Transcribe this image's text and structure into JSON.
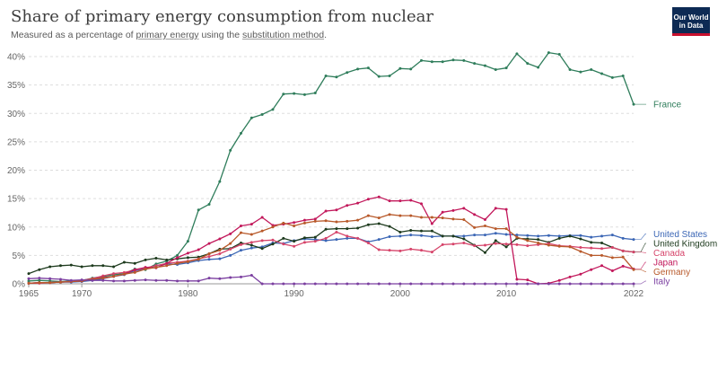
{
  "header": {
    "title": "Share of primary energy consumption from nuclear",
    "subtitle_prefix": "Measured as a percentage of ",
    "subtitle_link1": "primary energy",
    "subtitle_mid": " using the ",
    "subtitle_link2": "substitution method",
    "subtitle_suffix": ".",
    "logo_line1": "Our World",
    "logo_line2": "in Data"
  },
  "colors": {
    "France": "#2f7d5b",
    "United States": "#3b66b5",
    "United Kingdom": "#1d3a1d",
    "Canada": "#d6446a",
    "Japan": "#c2185b",
    "Germany": "#b8592a",
    "Italy": "#7b3fa0"
  },
  "chart_data": {
    "type": "line",
    "title": "Share of primary energy consumption from nuclear",
    "subtitle": "Measured as a percentage of primary energy using the substitution method.",
    "xlim": [
      1965,
      2022
    ],
    "ylim": [
      0,
      40
    ],
    "y_ticks": [
      "0%",
      "5%",
      "10%",
      "15%",
      "20%",
      "25%",
      "30%",
      "35%",
      "40%"
    ],
    "y_tick_values": [
      0,
      5,
      10,
      15,
      20,
      25,
      30,
      35,
      40
    ],
    "x_ticks": [
      "1965",
      "1970",
      "1980",
      "1990",
      "2000",
      "2010",
      "2022"
    ],
    "x_tick_values": [
      1965,
      1970,
      1980,
      1990,
      2000,
      2010,
      2022
    ],
    "grid": true,
    "legend": "right, end-of-line labels",
    "years": [
      1965,
      1966,
      1967,
      1968,
      1969,
      1970,
      1971,
      1972,
      1973,
      1974,
      1975,
      1976,
      1977,
      1978,
      1979,
      1980,
      1981,
      1982,
      1983,
      1984,
      1985,
      1986,
      1987,
      1988,
      1989,
      1990,
      1991,
      1992,
      1993,
      1994,
      1995,
      1996,
      1997,
      1998,
      1999,
      2000,
      2001,
      2002,
      2003,
      2004,
      2005,
      2006,
      2007,
      2008,
      2009,
      2010,
      2011,
      2012,
      2013,
      2014,
      2015,
      2016,
      2017,
      2018,
      2019,
      2020,
      2021,
      2022
    ],
    "series": [
      {
        "name": "France",
        "values": [
          0.5,
          0.6,
          0.5,
          0.4,
          0.5,
          0.6,
          1.0,
          1.3,
          1.6,
          1.8,
          2.6,
          2.5,
          3.5,
          4.0,
          5.0,
          7.5,
          13.0,
          14.0,
          18.0,
          23.5,
          26.5,
          29.2,
          29.8,
          30.7,
          33.4,
          33.5,
          33.3,
          33.6,
          36.6,
          36.4,
          37.2,
          37.8,
          38.0,
          36.5,
          36.6,
          37.9,
          37.8,
          39.3,
          39.1,
          39.1,
          39.4,
          39.3,
          38.8,
          38.4,
          37.7,
          38.0,
          40.5,
          38.8,
          38.1,
          40.7,
          40.4,
          37.7,
          37.3,
          37.7,
          37.0,
          36.3,
          36.6,
          31.6
        ]
      },
      {
        "name": "United States",
        "values": [
          0.1,
          0.2,
          0.2,
          0.3,
          0.3,
          0.4,
          0.6,
          0.9,
          1.3,
          1.6,
          2.3,
          2.6,
          3.2,
          3.5,
          3.4,
          3.7,
          4.1,
          4.3,
          4.4,
          5.0,
          5.9,
          6.3,
          6.5,
          7.2,
          7.1,
          7.6,
          7.9,
          7.8,
          7.6,
          7.8,
          8.0,
          8.0,
          7.4,
          7.8,
          8.3,
          8.4,
          8.6,
          8.5,
          8.3,
          8.4,
          8.4,
          8.4,
          8.6,
          8.6,
          8.9,
          8.7,
          8.6,
          8.5,
          8.4,
          8.5,
          8.4,
          8.5,
          8.5,
          8.2,
          8.4,
          8.6,
          8.0,
          7.8
        ]
      },
      {
        "name": "United Kingdom",
        "values": [
          1.8,
          2.5,
          3.0,
          3.2,
          3.3,
          3.0,
          3.2,
          3.2,
          3.0,
          3.8,
          3.6,
          4.2,
          4.5,
          4.2,
          4.4,
          4.6,
          4.7,
          5.3,
          6.1,
          6.2,
          7.2,
          6.8,
          6.2,
          7.0,
          8.0,
          7.5,
          8.1,
          8.2,
          9.6,
          9.7,
          9.7,
          9.8,
          10.4,
          10.6,
          10.1,
          9.1,
          9.4,
          9.3,
          9.3,
          8.4,
          8.4,
          7.9,
          6.8,
          5.5,
          7.6,
          6.5,
          8.0,
          7.9,
          7.8,
          7.3,
          8.0,
          8.4,
          7.9,
          7.3,
          7.2,
          6.4,
          5.8,
          5.6
        ]
      },
      {
        "name": "Canada",
        "values": [
          0.1,
          0.1,
          0.2,
          0.3,
          0.4,
          0.6,
          0.9,
          1.4,
          1.8,
          2.0,
          2.4,
          2.8,
          3.2,
          3.6,
          3.8,
          4.0,
          4.4,
          4.8,
          5.3,
          6.1,
          6.9,
          7.3,
          7.6,
          7.7,
          7.0,
          6.6,
          7.3,
          7.5,
          8.0,
          9.1,
          8.4,
          8.0,
          7.2,
          6.0,
          5.9,
          5.8,
          6.1,
          5.9,
          5.6,
          6.9,
          7.0,
          7.2,
          6.7,
          6.8,
          7.1,
          7.0,
          6.9,
          6.7,
          6.9,
          7.1,
          6.7,
          6.6,
          6.4,
          6.3,
          6.2,
          6.4,
          5.8,
          5.6
        ]
      },
      {
        "name": "Japan",
        "values": [
          0.1,
          0.2,
          0.2,
          0.3,
          0.4,
          0.5,
          0.8,
          1.1,
          1.3,
          1.7,
          2.5,
          2.9,
          2.8,
          3.6,
          4.6,
          5.4,
          6.0,
          7.1,
          7.9,
          8.8,
          10.2,
          10.5,
          11.7,
          10.3,
          10.5,
          10.8,
          11.2,
          11.4,
          12.8,
          13.0,
          13.8,
          14.2,
          14.9,
          15.3,
          14.6,
          14.6,
          14.7,
          14.1,
          10.6,
          12.6,
          12.9,
          13.3,
          12.2,
          11.3,
          13.3,
          13.1,
          0.8,
          0.7,
          0.0,
          0.1,
          0.6,
          1.2,
          1.7,
          2.5,
          3.2,
          2.3,
          3.1,
          2.6
        ]
      },
      {
        "name": "Germany",
        "values": [
          0.1,
          0.2,
          0.2,
          0.3,
          0.4,
          0.5,
          0.8,
          1.0,
          1.3,
          1.7,
          2.0,
          2.6,
          2.9,
          3.2,
          3.6,
          3.9,
          4.3,
          5.3,
          5.9,
          7.1,
          9.0,
          8.7,
          9.3,
          10.0,
          10.7,
          10.2,
          10.7,
          11.0,
          11.1,
          10.9,
          11.0,
          11.2,
          12.0,
          11.6,
          12.2,
          12.0,
          12.0,
          11.7,
          11.7,
          11.6,
          11.4,
          11.3,
          9.9,
          10.2,
          9.7,
          9.7,
          8.2,
          7.6,
          7.2,
          6.8,
          6.6,
          6.5,
          5.7,
          5.0,
          5.0,
          4.6,
          4.7,
          2.5
        ]
      },
      {
        "name": "Italy",
        "values": [
          0.9,
          1.0,
          0.9,
          0.8,
          0.6,
          0.7,
          0.6,
          0.6,
          0.5,
          0.5,
          0.6,
          0.7,
          0.6,
          0.6,
          0.5,
          0.5,
          0.5,
          1.0,
          0.9,
          1.1,
          1.2,
          1.5,
          0.0,
          0.0,
          0.0,
          0.0,
          0.0,
          0.0,
          0.0,
          0.0,
          0.0,
          0.0,
          0.0,
          0.0,
          0.0,
          0.0,
          0.0,
          0.0,
          0.0,
          0.0,
          0.0,
          0.0,
          0.0,
          0.0,
          0.0,
          0.0,
          0.0,
          0.0,
          0.0,
          0.0,
          0.0,
          0.0,
          0.0,
          0.0,
          0.0,
          0.0,
          0.0,
          0.0
        ]
      }
    ]
  }
}
